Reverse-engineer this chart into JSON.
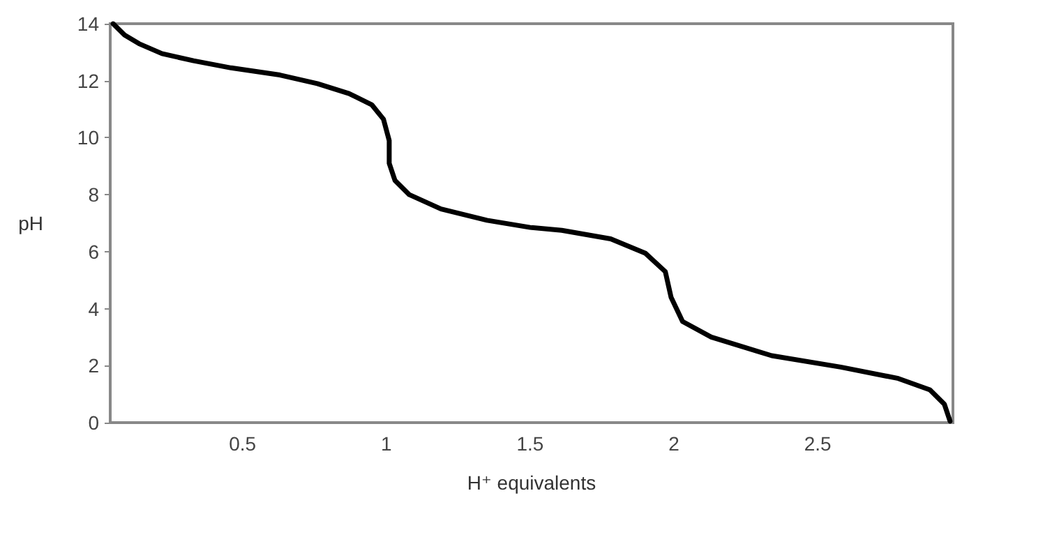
{
  "chart_data": {
    "type": "line",
    "xlabel": "H⁺ equivalents",
    "ylabel": "pH",
    "xlim": [
      0.04,
      2.97
    ],
    "xticks": [
      0.5,
      1,
      1.5,
      2,
      2.5
    ],
    "ylim": [
      0,
      14
    ],
    "yticks": [
      0,
      2,
      4,
      6,
      8,
      10,
      12,
      14
    ],
    "grid": false,
    "marker": "none",
    "line_style": "solid",
    "series": [
      {
        "color": "#000000",
        "x": [
          0.05,
          0.09,
          0.14,
          0.22,
          0.33,
          0.46,
          0.63,
          0.76,
          0.87,
          0.95,
          0.99,
          1.01,
          1.01,
          1.03,
          1.08,
          1.19,
          1.35,
          1.5,
          1.61,
          1.78,
          1.9,
          1.97,
          1.99,
          2.03,
          2.13,
          2.34,
          2.58,
          2.78,
          2.89,
          2.94,
          2.96
        ],
        "values": [
          14.0,
          13.6,
          13.3,
          12.95,
          12.7,
          12.45,
          12.2,
          11.9,
          11.55,
          11.15,
          10.65,
          9.9,
          9.1,
          8.5,
          8.0,
          7.5,
          7.1,
          6.85,
          6.75,
          6.45,
          5.95,
          5.3,
          4.4,
          3.55,
          3.0,
          2.35,
          1.95,
          1.55,
          1.15,
          0.65,
          0.05
        ]
      }
    ]
  }
}
